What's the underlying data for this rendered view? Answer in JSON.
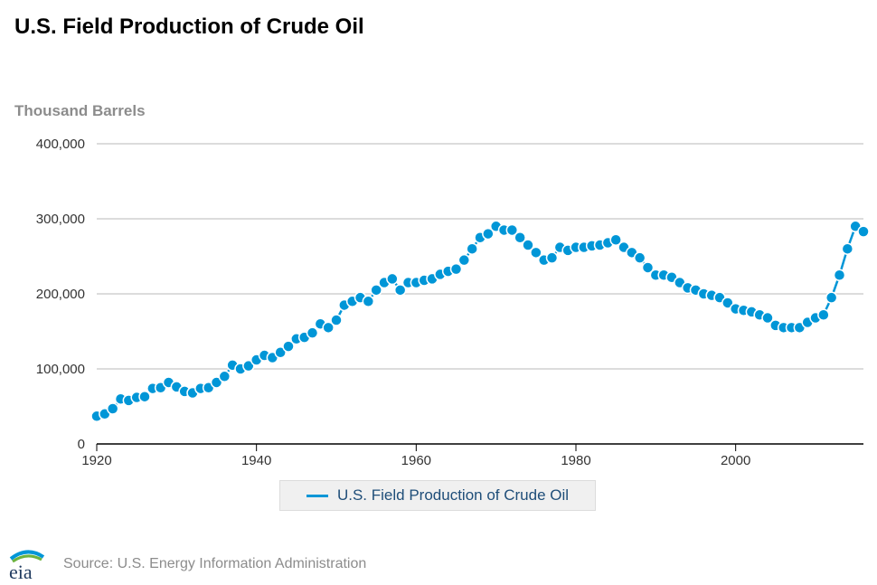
{
  "header": {
    "title": "U.S. Field Production of Crude Oil",
    "y_unit": "Thousand Barrels"
  },
  "legend": {
    "series_label": "U.S. Field Production of Crude Oil"
  },
  "footer": {
    "logo_text": "eia",
    "source": "Source: U.S. Energy Information Administration"
  },
  "colors": {
    "series": "#0096d7",
    "grid": "#c8c8c8",
    "axis": "#000000",
    "legend_text": "#1f4e79"
  },
  "chart_data": {
    "type": "line",
    "title": "U.S. Field Production of Crude Oil",
    "ylabel": "Thousand Barrels",
    "xlabel": "",
    "xlim": [
      1920,
      2016
    ],
    "ylim": [
      0,
      400000
    ],
    "y_ticks": [
      0,
      100000,
      200000,
      300000,
      400000
    ],
    "y_tick_labels": [
      "0",
      "100,000",
      "200,000",
      "300,000",
      "400,000"
    ],
    "x_ticks": [
      1920,
      1940,
      1960,
      1980,
      2000
    ],
    "x_tick_labels": [
      "1920",
      "1940",
      "1960",
      "1980",
      "2000"
    ],
    "grid": true,
    "legend_position": "bottom-center",
    "series": [
      {
        "name": "U.S. Field Production of Crude Oil",
        "markers": true,
        "x": [
          1920,
          1921,
          1922,
          1923,
          1924,
          1925,
          1926,
          1927,
          1928,
          1929,
          1930,
          1931,
          1932,
          1933,
          1934,
          1935,
          1936,
          1937,
          1938,
          1939,
          1940,
          1941,
          1942,
          1943,
          1944,
          1945,
          1946,
          1947,
          1948,
          1949,
          1950,
          1951,
          1952,
          1953,
          1954,
          1955,
          1956,
          1957,
          1958,
          1959,
          1960,
          1961,
          1962,
          1963,
          1964,
          1965,
          1966,
          1967,
          1968,
          1969,
          1970,
          1971,
          1972,
          1973,
          1974,
          1975,
          1976,
          1977,
          1978,
          1979,
          1980,
          1981,
          1982,
          1983,
          1984,
          1985,
          1986,
          1987,
          1988,
          1989,
          1990,
          1991,
          1992,
          1993,
          1994,
          1995,
          1996,
          1997,
          1998,
          1999,
          2000,
          2001,
          2002,
          2003,
          2004,
          2005,
          2006,
          2007,
          2008,
          2009,
          2010,
          2011,
          2012,
          2013,
          2014,
          2015,
          2016
        ],
        "values": [
          37000,
          40000,
          47000,
          60000,
          58000,
          62000,
          63000,
          74000,
          75000,
          82000,
          76000,
          70000,
          68000,
          74000,
          75000,
          82000,
          90000,
          105000,
          100000,
          104000,
          112000,
          118000,
          115000,
          122000,
          130000,
          140000,
          142000,
          148000,
          160000,
          155000,
          165000,
          185000,
          190000,
          195000,
          190000,
          205000,
          215000,
          220000,
          205000,
          215000,
          215000,
          218000,
          220000,
          226000,
          230000,
          233000,
          245000,
          260000,
          275000,
          280000,
          290000,
          285000,
          285000,
          275000,
          265000,
          255000,
          245000,
          248000,
          262000,
          258000,
          262000,
          262000,
          264000,
          265000,
          268000,
          272000,
          262000,
          255000,
          248000,
          235000,
          225000,
          225000,
          222000,
          215000,
          208000,
          205000,
          200000,
          198000,
          195000,
          188000,
          180000,
          178000,
          176000,
          172000,
          168000,
          158000,
          155000,
          155000,
          155000,
          162000,
          168000,
          172000,
          195000,
          225000,
          260000,
          290000,
          283000
        ]
      }
    ]
  }
}
